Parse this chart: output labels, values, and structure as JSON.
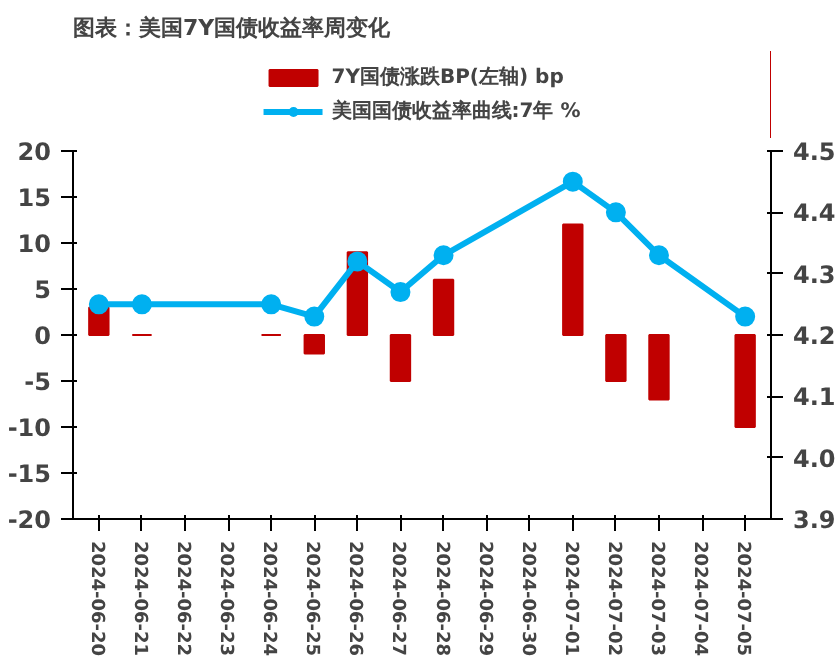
{
  "chart_data": {
    "type": "bar",
    "title": "图表：美国7Y国债收益率周变化",
    "categories": [
      "2024-06-20",
      "2024-06-21",
      "2024-06-22",
      "2024-06-23",
      "2024-06-24",
      "2024-06-25",
      "2024-06-26",
      "2024-06-27",
      "2024-06-28",
      "2024-06-29",
      "2024-06-30",
      "2024-07-01",
      "2024-07-02",
      "2024-07-03",
      "2024-07-04",
      "2024-07-05"
    ],
    "series": [
      {
        "name": "7Y国债涨跌BP(左轴) bp",
        "color": "#c00000",
        "values": [
          3,
          0,
          null,
          null,
          0,
          -2,
          9,
          -5,
          6,
          null,
          null,
          12,
          -5,
          -7,
          null,
          -10
        ]
      },
      {
        "name": "美国国债收益率曲线:7年 %",
        "type": "line",
        "axis": "y2",
        "color": "#00b0f0",
        "marker": "circle",
        "values": [
          4.25,
          4.25,
          null,
          null,
          4.25,
          4.23,
          4.32,
          4.27,
          4.33,
          null,
          null,
          4.45,
          4.4,
          4.33,
          null,
          4.23
        ]
      }
    ],
    "ylim": [
      -20,
      20
    ],
    "yticks": [
      -20,
      -15,
      -10,
      -5,
      0,
      5,
      10,
      15,
      20
    ],
    "y2lim": [
      3.9,
      4.5
    ],
    "y2ticks": [
      3.9,
      {
        "value": 4.0,
        "label": "4.0"
      },
      4.1,
      4.2,
      4.3,
      4.4,
      4.5
    ],
    "grid": false,
    "legend": "top"
  }
}
